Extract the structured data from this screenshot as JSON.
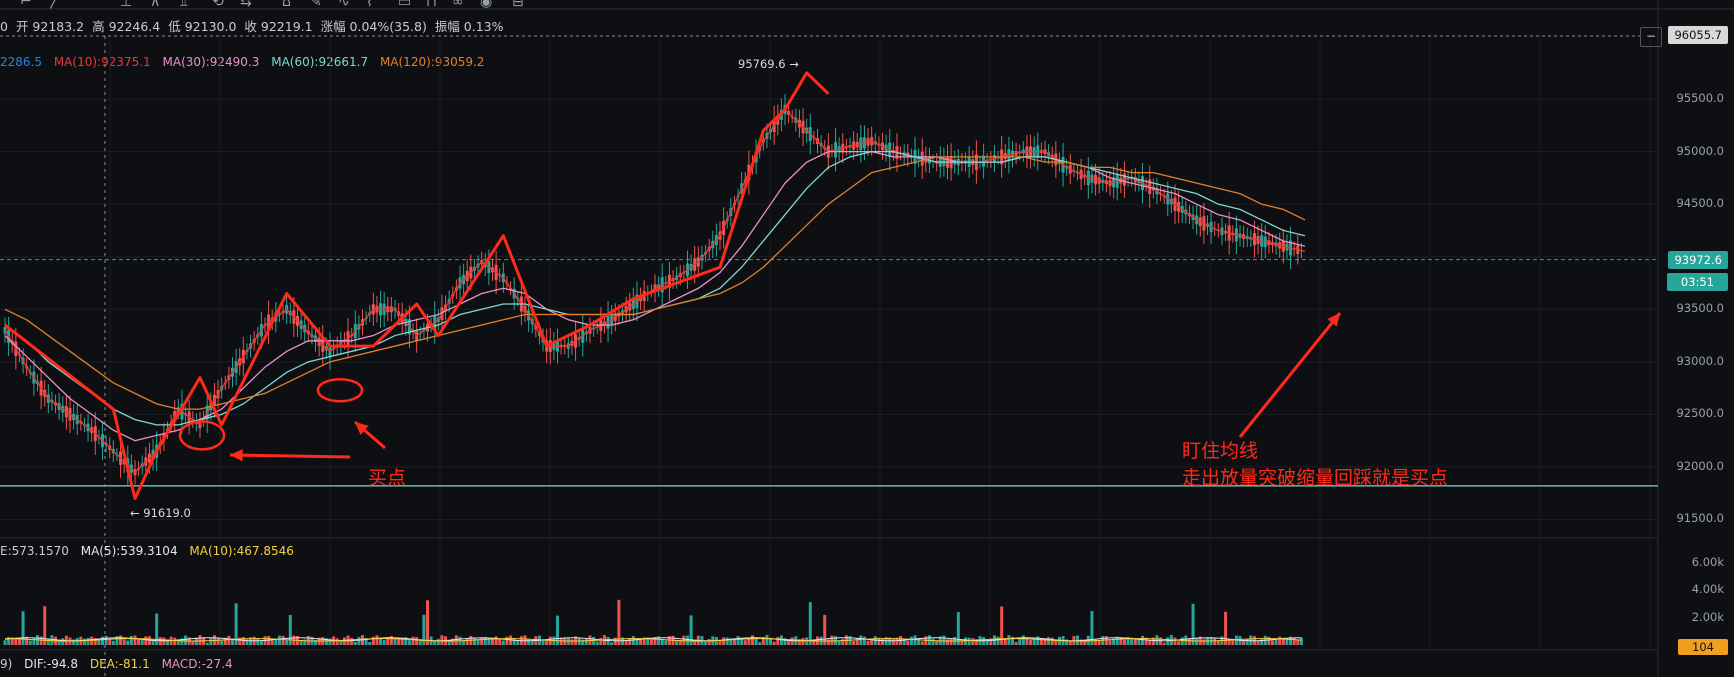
{
  "info_bar": {
    "prefix": "0",
    "open": "开 92183.2",
    "high": "高 92246.4",
    "low": "低 92130.0",
    "close": "收 92219.1",
    "change": "涨幅 0.04%(35.8)",
    "amplitude": "振幅 0.13%"
  },
  "ma_legend": {
    "ma5": "2286.5",
    "ma10": "MA(10):92375.1",
    "ma30": "MA(30):92490.3",
    "ma60": "MA(60):92661.7",
    "ma120": "MA(120):93059.2"
  },
  "volume_legend": {
    "vol": "E:573.1570",
    "ma5": "MA(5):539.3104",
    "ma10": "MA(10):467.8546"
  },
  "macd_legend": {
    "prefix": "9)",
    "dif": "DIF:-94.8",
    "dea": "DEA:-81.1",
    "macd": "MACD:-27.4"
  },
  "price_axis": [
    "95500.0",
    "95000.0",
    "94500.0",
    "94000.0",
    "93500.0",
    "93000.0",
    "92500.0",
    "92000.0",
    "91500.0"
  ],
  "volume_axis": [
    "6.00k",
    "4.00k",
    "2.00k"
  ],
  "tags": {
    "top_price": "96055.7",
    "current_price": "93972.6",
    "countdown": "03:51",
    "volume_value": "104",
    "settings": "−"
  },
  "extremes": {
    "high_label": "95769.6 →",
    "low_label": "← 91619.0"
  },
  "annotations": {
    "buy_point": "买点",
    "line1": "盯住均线",
    "line2": "走出放量突破缩量回踩就是买点"
  },
  "colors": {
    "up": "#26a69a",
    "down": "#ef5350",
    "ma5": "#1e88e5",
    "ma10": "#e53935",
    "ma30": "#e991c9",
    "ma60": "#7fd8d0",
    "ma120": "#e0802a",
    "annotation": "#ff2a1a"
  },
  "chart_data": {
    "type": "line",
    "title": "",
    "ylim": [
      91400,
      96100
    ],
    "x": [
      0,
      1,
      2,
      3,
      4,
      5,
      6,
      7,
      8,
      9,
      10,
      11,
      12,
      13,
      14,
      15,
      16,
      17,
      18,
      19,
      20,
      21,
      22,
      23,
      24,
      25,
      26,
      27,
      28,
      29,
      30,
      31,
      32,
      33,
      34,
      35,
      36,
      37,
      38,
      39,
      40,
      41,
      42,
      43,
      44,
      45,
      46,
      47,
      48,
      49,
      50,
      51,
      52,
      53,
      54,
      55,
      56,
      57,
      58,
      59,
      60
    ],
    "series": [
      {
        "name": "MA(10)",
        "values": [
          93300,
          92950,
          92650,
          92500,
          92350,
          92150,
          91950,
          92150,
          92550,
          92400,
          92750,
          93050,
          93350,
          93500,
          93280,
          93100,
          93250,
          93500,
          93500,
          93250,
          93400,
          93750,
          93950,
          93800,
          93500,
          93150,
          93150,
          93300,
          93400,
          93550,
          93700,
          93800,
          93950,
          94200,
          94650,
          95100,
          95400,
          95200,
          95000,
          95050,
          95100,
          95000,
          94950,
          94900,
          94900,
          94900,
          94950,
          95000,
          95000,
          94850,
          94750,
          94700,
          94750,
          94650,
          94500,
          94350,
          94250,
          94200,
          94150,
          94100,
          94050
        ]
      },
      {
        "name": "MA(30)",
        "values": [
          93250,
          93050,
          92850,
          92650,
          92500,
          92350,
          92250,
          92300,
          92350,
          92450,
          92550,
          92750,
          92950,
          93100,
          93200,
          93200,
          93200,
          93250,
          93350,
          93400,
          93450,
          93550,
          93650,
          93700,
          93650,
          93500,
          93400,
          93350,
          93350,
          93400,
          93500,
          93600,
          93700,
          93850,
          94100,
          94400,
          94700,
          94900,
          95000,
          95000,
          95000,
          94950,
          94950,
          94950,
          94900,
          94900,
          94900,
          94950,
          94950,
          94900,
          94850,
          94750,
          94700,
          94650,
          94600,
          94500,
          94400,
          94350,
          94250,
          94150,
          94100
        ]
      },
      {
        "name": "MA(60)",
        "values": [
          93350,
          93200,
          93000,
          92850,
          92700,
          92550,
          92450,
          92400,
          92400,
          92450,
          92500,
          92600,
          92750,
          92900,
          93000,
          93050,
          93100,
          93150,
          93250,
          93300,
          93350,
          93450,
          93500,
          93550,
          93550,
          93500,
          93450,
          93450,
          93450,
          93450,
          93500,
          93550,
          93600,
          93700,
          93900,
          94150,
          94400,
          94650,
          94850,
          94950,
          95000,
          95000,
          94950,
          94900,
          94900,
          94900,
          94900,
          94950,
          94950,
          94900,
          94850,
          94800,
          94750,
          94700,
          94650,
          94600,
          94500,
          94450,
          94350,
          94250,
          94200
        ]
      },
      {
        "name": "MA(120)",
        "values": [
          93500,
          93400,
          93250,
          93100,
          92950,
          92800,
          92700,
          92600,
          92550,
          92550,
          92600,
          92650,
          92700,
          92800,
          92900,
          93000,
          93050,
          93100,
          93150,
          93200,
          93250,
          93300,
          93350,
          93400,
          93450,
          93450,
          93450,
          93450,
          93450,
          93450,
          93500,
          93550,
          93600,
          93650,
          93750,
          93900,
          94100,
          94300,
          94500,
          94650,
          94800,
          94850,
          94900,
          94950,
          94950,
          94950,
          94950,
          94950,
          94900,
          94900,
          94850,
          94850,
          94800,
          94800,
          94750,
          94700,
          94650,
          94600,
          94500,
          94450,
          94350
        ]
      }
    ]
  }
}
